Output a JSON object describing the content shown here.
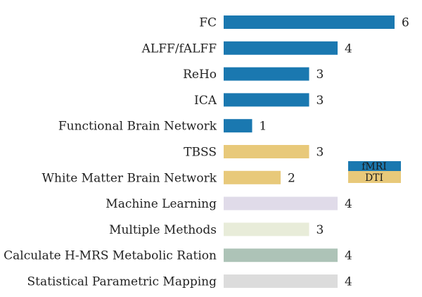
{
  "chart_data": {
    "type": "bar",
    "orientation": "horizontal",
    "categories": [
      "FC",
      "ALFF/fALFF",
      "ReHo",
      "ICA",
      "Functional Brain Network",
      "TBSS",
      "White Matter Brain Network",
      "Machine Learning",
      "Multiple Methods",
      "Calculate H-MRS Metabolic Ration",
      "Statistical Parametric Mapping"
    ],
    "values": [
      6,
      4,
      3,
      3,
      1,
      3,
      2,
      4,
      3,
      4,
      4
    ],
    "colors": [
      "#1a78b0",
      "#1a78b0",
      "#1a78b0",
      "#1a78b0",
      "#1a78b0",
      "#e8c97a",
      "#e8c97a",
      "#e0dbe9",
      "#e8ecd9",
      "#adc3b7",
      "#dcdcdc"
    ],
    "xlim": [
      0,
      6
    ],
    "grid": false,
    "legend": {
      "position": "right",
      "entries": [
        {
          "name": "fMRI",
          "color": "#1a78b0"
        },
        {
          "name": "DTI",
          "color": "#e8c97a"
        }
      ]
    }
  }
}
